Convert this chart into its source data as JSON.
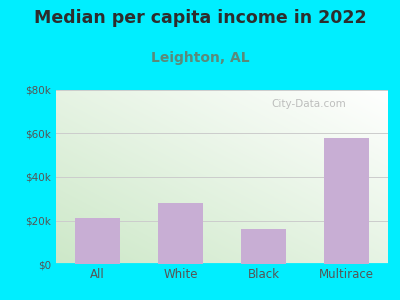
{
  "title": "Median per capita income in 2022",
  "subtitle": "Leighton, AL",
  "categories": [
    "All",
    "White",
    "Black",
    "Multirace"
  ],
  "values": [
    21000,
    28000,
    16000,
    58000
  ],
  "bar_color": "#c8aed4",
  "bar_edge_color": "#b090c0",
  "background_color": "#00eeff",
  "title_color": "#2d2d2d",
  "subtitle_color": "#5a8a7a",
  "tick_color": "#555555",
  "grid_color": "#cccccc",
  "ylim": [
    0,
    80000
  ],
  "yticks": [
    0,
    20000,
    40000,
    60000,
    80000
  ],
  "ytick_labels": [
    "$0",
    "$20k",
    "$40k",
    "$60k",
    "$80k"
  ],
  "title_fontsize": 12.5,
  "subtitle_fontsize": 10,
  "watermark": "City-Data.com",
  "watermark_color": "#aaaaaa",
  "plot_grad_left": "#cde8c8",
  "plot_grad_right": "#f5fdf5"
}
